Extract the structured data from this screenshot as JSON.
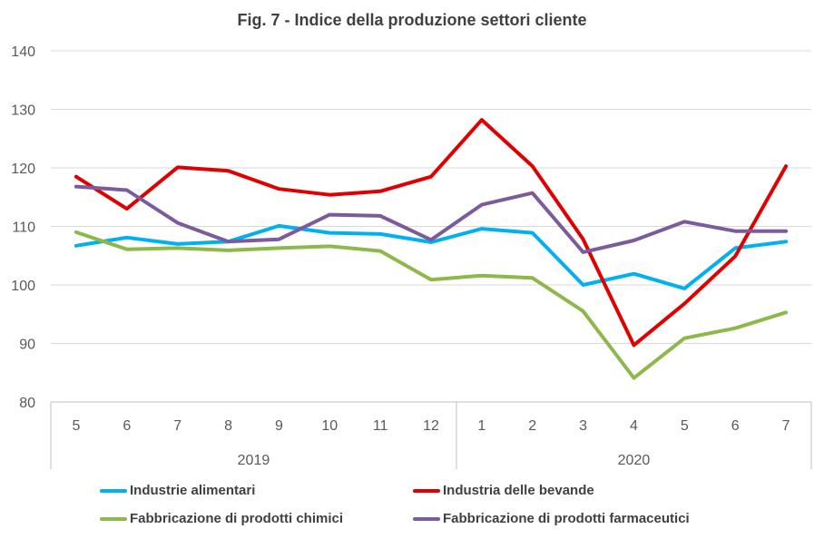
{
  "chart_data": {
    "type": "line",
    "title": "Fig. 7 - Indice della produzione settori cliente",
    "xlabel": "",
    "ylabel": "",
    "ylim": [
      80,
      140
    ],
    "yticks": [
      "80",
      "90",
      "100",
      "110",
      "120",
      "130",
      "140"
    ],
    "grid": true,
    "legend_position": "bottom",
    "categories": [
      "5",
      "6",
      "7",
      "8",
      "9",
      "10",
      "11",
      "12",
      "1",
      "2",
      "3",
      "4",
      "5",
      "6",
      "7"
    ],
    "groups": [
      {
        "label": "2019",
        "count": 8
      },
      {
        "label": "2020",
        "count": 7
      }
    ],
    "series": [
      {
        "name": "Industrie alimentari",
        "color": "#00b0f0",
        "values": [
          106.7,
          108.1,
          107.0,
          107.4,
          110.1,
          108.9,
          108.7,
          107.3,
          109.6,
          108.9,
          100.0,
          101.9,
          99.4,
          106.3,
          107.4
        ]
      },
      {
        "name": "Industria delle bevande",
        "color": "#e00000",
        "values": [
          118.5,
          113.0,
          120.1,
          119.5,
          116.4,
          115.4,
          116.0,
          118.5,
          128.2,
          120.3,
          107.8,
          89.7,
          96.8,
          104.9,
          120.3
        ]
      },
      {
        "name": "Fabbricazione di prodotti chimici",
        "color": "#8db84a",
        "values": [
          109.0,
          106.1,
          106.3,
          105.9,
          106.3,
          106.6,
          105.8,
          100.9,
          101.6,
          101.2,
          95.5,
          84.1,
          90.9,
          92.6,
          95.3
        ]
      },
      {
        "name": "Fabbricazione di prodotti farmaceutici",
        "color": "#7b5b9c",
        "values": [
          116.8,
          116.2,
          110.6,
          107.4,
          107.8,
          112.0,
          111.8,
          107.7,
          113.7,
          115.7,
          105.6,
          107.6,
          110.8,
          109.2,
          109.2
        ]
      }
    ]
  }
}
